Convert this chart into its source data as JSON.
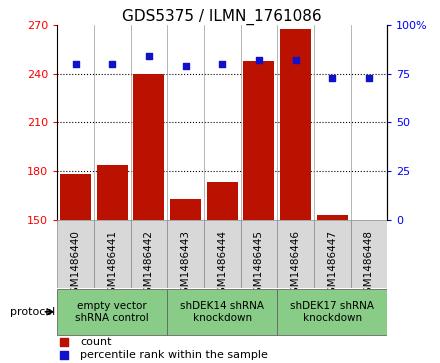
{
  "title": "GDS5375 / ILMN_1761086",
  "samples": [
    "GSM1486440",
    "GSM1486441",
    "GSM1486442",
    "GSM1486443",
    "GSM1486444",
    "GSM1486445",
    "GSM1486446",
    "GSM1486447",
    "GSM1486448"
  ],
  "counts": [
    178,
    184,
    240,
    163,
    173,
    248,
    268,
    153,
    150
  ],
  "percentiles": [
    80,
    80,
    84,
    79,
    80,
    82,
    82,
    73,
    73
  ],
  "ylim_left": [
    150,
    270
  ],
  "ylim_right": [
    0,
    100
  ],
  "yticks_left": [
    150,
    180,
    210,
    240,
    270
  ],
  "yticks_right": [
    0,
    25,
    50,
    75,
    100
  ],
  "bar_color": "#bb1100",
  "dot_color": "#1111cc",
  "plot_bg": "#ffffff",
  "sample_box_color": "#d8d8d8",
  "groups": [
    {
      "label": "empty vector\nshRNA control",
      "start": 0,
      "end": 3,
      "color": "#88cc88"
    },
    {
      "label": "shDEK14 shRNA\nknockdown",
      "start": 3,
      "end": 6,
      "color": "#88cc88"
    },
    {
      "label": "shDEK17 shRNA\nknockdown",
      "start": 6,
      "end": 9,
      "color": "#88cc88"
    }
  ],
  "legend_count_label": "count",
  "legend_pct_label": "percentile rank within the sample",
  "protocol_label": "protocol",
  "title_fontsize": 11,
  "tick_fontsize": 8,
  "sample_fontsize": 7.5,
  "group_fontsize": 7.5
}
